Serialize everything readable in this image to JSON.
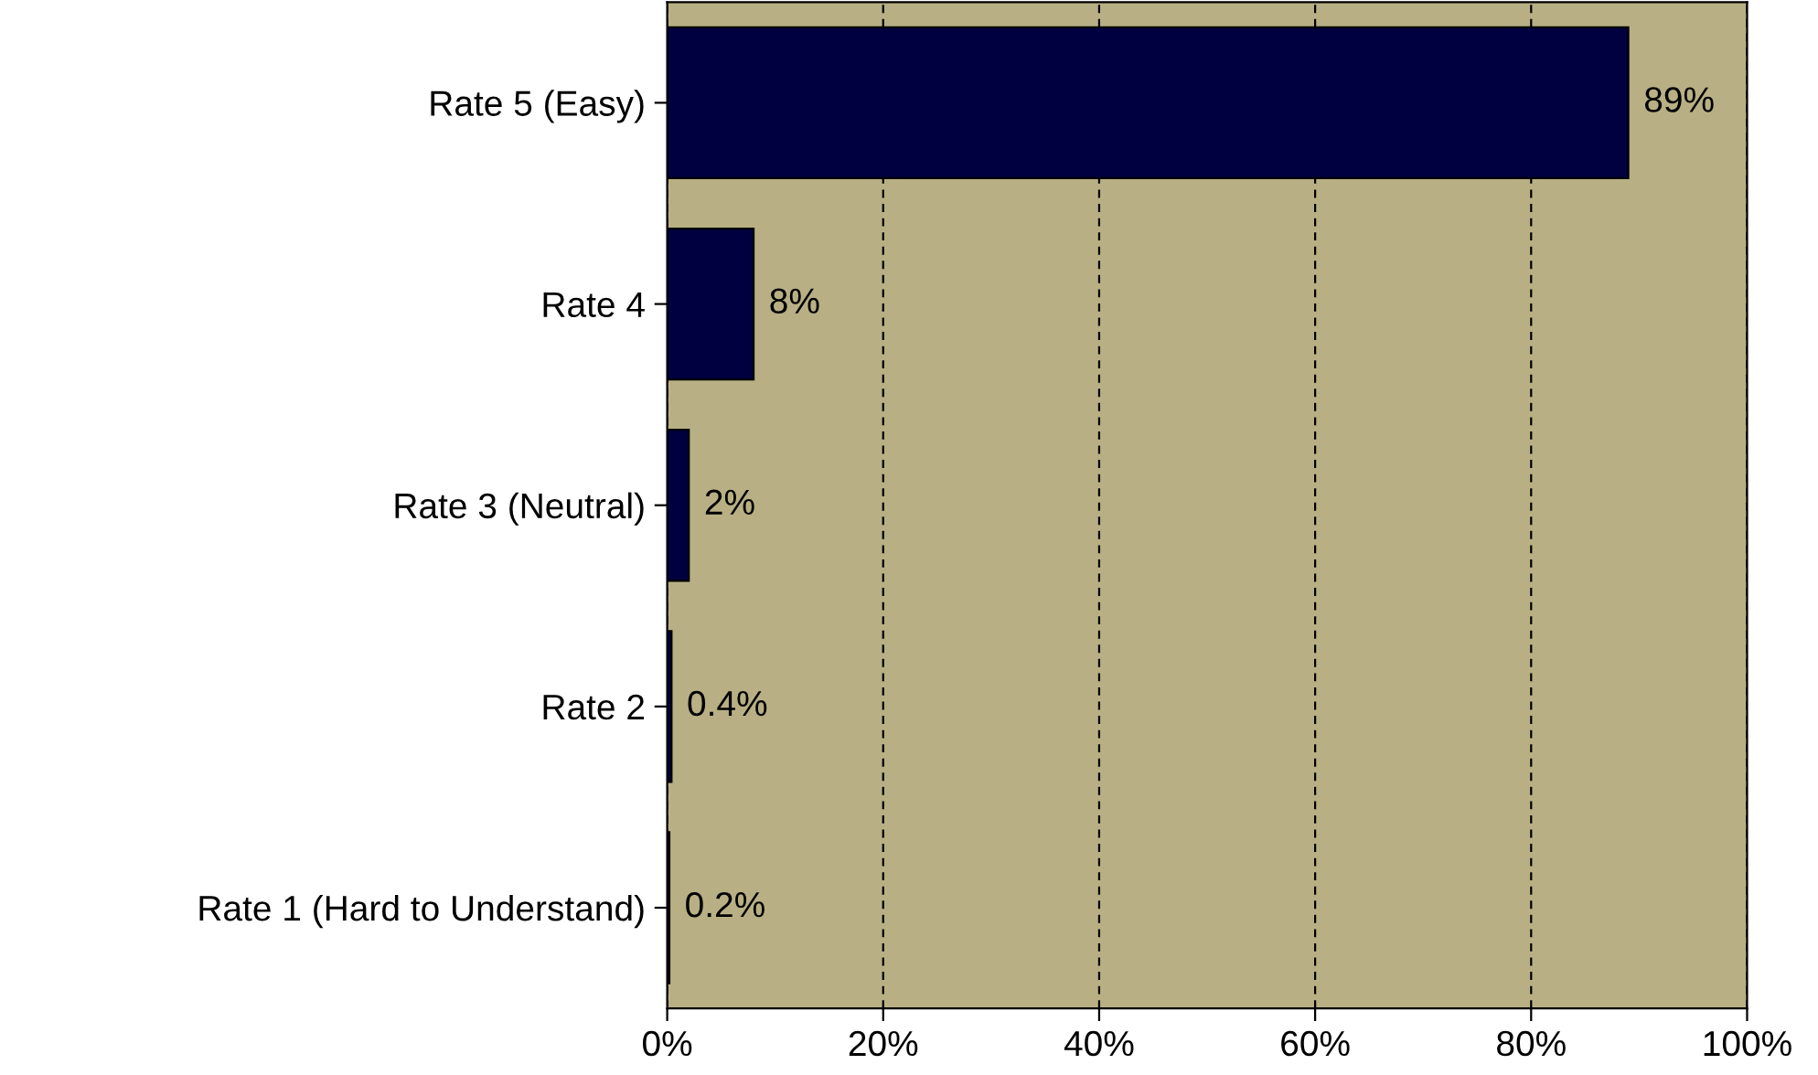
{
  "chart_data": {
    "type": "bar",
    "orientation": "horizontal",
    "categories": [
      "Rate 5 (Easy)",
      "Rate 4",
      "Rate 3 (Neutral)",
      "Rate 2",
      "Rate 1 (Hard to Understand)"
    ],
    "values": [
      89,
      8,
      2,
      0.4,
      0.2
    ],
    "value_labels": [
      "89%",
      "8%",
      "2%",
      "0.4%",
      "0.2%"
    ],
    "color": "#000040",
    "xlim": [
      0,
      100
    ],
    "xticks": [
      {
        "value": 0,
        "label": "0%"
      },
      {
        "value": 20,
        "label": "20%"
      },
      {
        "value": 40,
        "label": "40%"
      },
      {
        "value": 60,
        "label": "60%"
      },
      {
        "value": 80,
        "label": "80%"
      },
      {
        "value": 100,
        "label": "100%"
      }
    ],
    "grid": "x"
  }
}
